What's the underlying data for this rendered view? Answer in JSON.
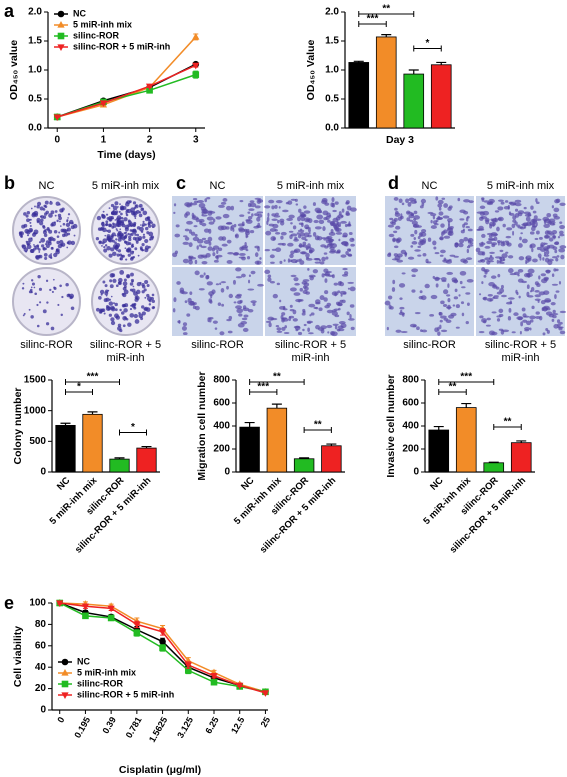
{
  "panel_labels": [
    "a",
    "b",
    "c",
    "d",
    "e"
  ],
  "chart_data": [
    {
      "type": "line",
      "y_label": "OD₄₅₀ value",
      "x_label": "Time (days)",
      "x": [
        0,
        1,
        2,
        3
      ],
      "xlim": [
        -0.2,
        3.2
      ],
      "xticks": [
        0,
        1,
        2,
        3
      ],
      "ylim": [
        0,
        2
      ],
      "yticks": [
        {
          "value": 0,
          "label": "0.0"
        },
        0.5,
        {
          "value": 1,
          "label": "1.0"
        },
        1.5,
        {
          "value": 2,
          "label": "2.0"
        }
      ],
      "legend": "upper left",
      "series": [
        {
          "name": "NC",
          "color": "#000000",
          "marker": "circle",
          "values": [
            0.19,
            0.47,
            0.7,
            1.1
          ],
          "errors": [
            0.01,
            0.02,
            0.02,
            0.03
          ]
        },
        {
          "name": "5 miR-inh mix",
          "color": "#f28c28",
          "marker": "triangle",
          "values": [
            0.19,
            0.4,
            0.7,
            1.57
          ],
          "errors": [
            0.01,
            0.02,
            0.02,
            0.05
          ]
        },
        {
          "name": "silinc-ROR",
          "color": "#22bb22",
          "marker": "square",
          "values": [
            0.19,
            0.45,
            0.65,
            0.92
          ],
          "errors": [
            0.01,
            0.02,
            0.02,
            0.06
          ]
        },
        {
          "name": "silinc-ROR + 5 miR-inh",
          "color": "#ee2222",
          "marker": "triangle-down",
          "values": [
            0.19,
            0.43,
            0.72,
            1.08
          ],
          "errors": [
            0.01,
            0.02,
            0.02,
            0.03
          ]
        }
      ]
    },
    {
      "type": "bar",
      "y_label": "OD₄₅₀ Value",
      "x_label": "Day 3",
      "values": [
        1.13,
        1.57,
        0.93,
        1.09
      ],
      "errors": [
        0.02,
        0.04,
        0.07,
        0.04
      ],
      "colors": [
        "#000000",
        "#f28c28",
        "#22bb22",
        "#ee2222"
      ],
      "ylim": [
        0,
        2
      ],
      "yticks": [
        {
          "value": 0,
          "label": "0.0"
        },
        0.5,
        {
          "value": 1,
          "label": "1.0"
        },
        1.5,
        {
          "value": 2,
          "label": "2.0"
        }
      ],
      "significance": [
        {
          "from": 0,
          "to": 1,
          "label": "***"
        },
        {
          "from": 0,
          "to": 2,
          "label": "**"
        },
        {
          "from": 2,
          "to": 3,
          "label": "*"
        }
      ]
    },
    {
      "type": "bar",
      "y_label": "Colony number",
      "image_labels": [
        "NC",
        "5 miR-inh mix",
        "silinc-ROR",
        "silinc-ROR + 5 miR-inh"
      ],
      "categories": [
        "NC",
        "5 miR-inh mix",
        "silinc-ROR",
        "silinc-ROR + 5 miR-inh"
      ],
      "values": [
        760,
        940,
        210,
        390
      ],
      "errors": [
        35,
        40,
        20,
        25
      ],
      "colors": [
        "#000000",
        "#f28c28",
        "#22bb22",
        "#ee2222"
      ],
      "ylim": [
        0,
        1500
      ],
      "yticks": [
        0,
        500,
        1000,
        1500
      ],
      "significance": [
        {
          "from": 0,
          "to": 1,
          "label": "*"
        },
        {
          "from": 0,
          "to": 2,
          "label": "***"
        },
        {
          "from": 2,
          "to": 3,
          "label": "*"
        }
      ]
    },
    {
      "type": "bar",
      "y_label": "Migration cell number",
      "image_labels": [
        "NC",
        "5 miR-inh mix",
        "silinc-ROR",
        "silinc-ROR + 5 miR-inh"
      ],
      "categories": [
        "NC",
        "5 miR-inh mix",
        "silinc-ROR",
        "silinc-ROR + 5 miR-inh"
      ],
      "values": [
        390,
        555,
        115,
        228
      ],
      "errors": [
        40,
        35,
        8,
        15
      ],
      "colors": [
        "#000000",
        "#f28c28",
        "#22bb22",
        "#ee2222"
      ],
      "ylim": [
        0,
        800
      ],
      "yticks": [
        0,
        200,
        400,
        600,
        800
      ],
      "significance": [
        {
          "from": 0,
          "to": 1,
          "label": "***"
        },
        {
          "from": 0,
          "to": 2,
          "label": "**"
        },
        {
          "from": 2,
          "to": 3,
          "label": "**"
        }
      ]
    },
    {
      "type": "bar",
      "y_label": "Invasive cell number",
      "image_labels": [
        "NC",
        "5 miR-inh mix",
        "silinc-ROR",
        "silinc-ROR + 5 miR-inh"
      ],
      "categories": [
        "NC",
        "5 miR-inh mix",
        "silinc-ROR",
        "silinc-ROR + 5 miR-inh"
      ],
      "values": [
        365,
        560,
        80,
        255
      ],
      "errors": [
        30,
        35,
        5,
        15
      ],
      "colors": [
        "#000000",
        "#f28c28",
        "#22bb22",
        "#ee2222"
      ],
      "ylim": [
        0,
        800
      ],
      "yticks": [
        0,
        200,
        400,
        600,
        800
      ],
      "significance": [
        {
          "from": 0,
          "to": 1,
          "label": "**"
        },
        {
          "from": 0,
          "to": 2,
          "label": "***"
        },
        {
          "from": 2,
          "to": 3,
          "label": "**"
        }
      ]
    },
    {
      "type": "line",
      "y_label": "Cell viability",
      "x_label": "Cisplatin (μg/ml)",
      "categories": [
        "0",
        "0.195",
        "0.39",
        "0.781",
        "1.5625",
        "3.125",
        "6.25",
        "12.5",
        "25"
      ],
      "ylim": [
        0,
        100
      ],
      "yticks": [
        0,
        20,
        40,
        60,
        80,
        100
      ],
      "legend": "lower left",
      "series": [
        {
          "name": "NC",
          "color": "#000000",
          "marker": "circle",
          "values": [
            100,
            91,
            87,
            75,
            64,
            40,
            30,
            23,
            17
          ],
          "errors": [
            1,
            2,
            2,
            3,
            3,
            3,
            2,
            1,
            1
          ]
        },
        {
          "name": "5 miR-inh mix",
          "color": "#f28c28",
          "marker": "triangle",
          "values": [
            100,
            99,
            97,
            83,
            76,
            46,
            35,
            24,
            17
          ],
          "errors": [
            1,
            2,
            2,
            3,
            3,
            3,
            2,
            1,
            1
          ]
        },
        {
          "name": "silinc-ROR",
          "color": "#22bb22",
          "marker": "square",
          "values": [
            100,
            88,
            86,
            72,
            58,
            37,
            26,
            22,
            17
          ],
          "errors": [
            1,
            2,
            2,
            3,
            3,
            3,
            2,
            1,
            1
          ]
        },
        {
          "name": "silinc-ROR + 5 miR-inh",
          "color": "#ee2222",
          "marker": "triangle-down",
          "values": [
            100,
            97,
            95,
            80,
            73,
            42,
            32,
            23,
            16
          ],
          "errors": [
            1,
            2,
            2,
            3,
            3,
            3,
            2,
            1,
            1
          ]
        }
      ]
    }
  ]
}
